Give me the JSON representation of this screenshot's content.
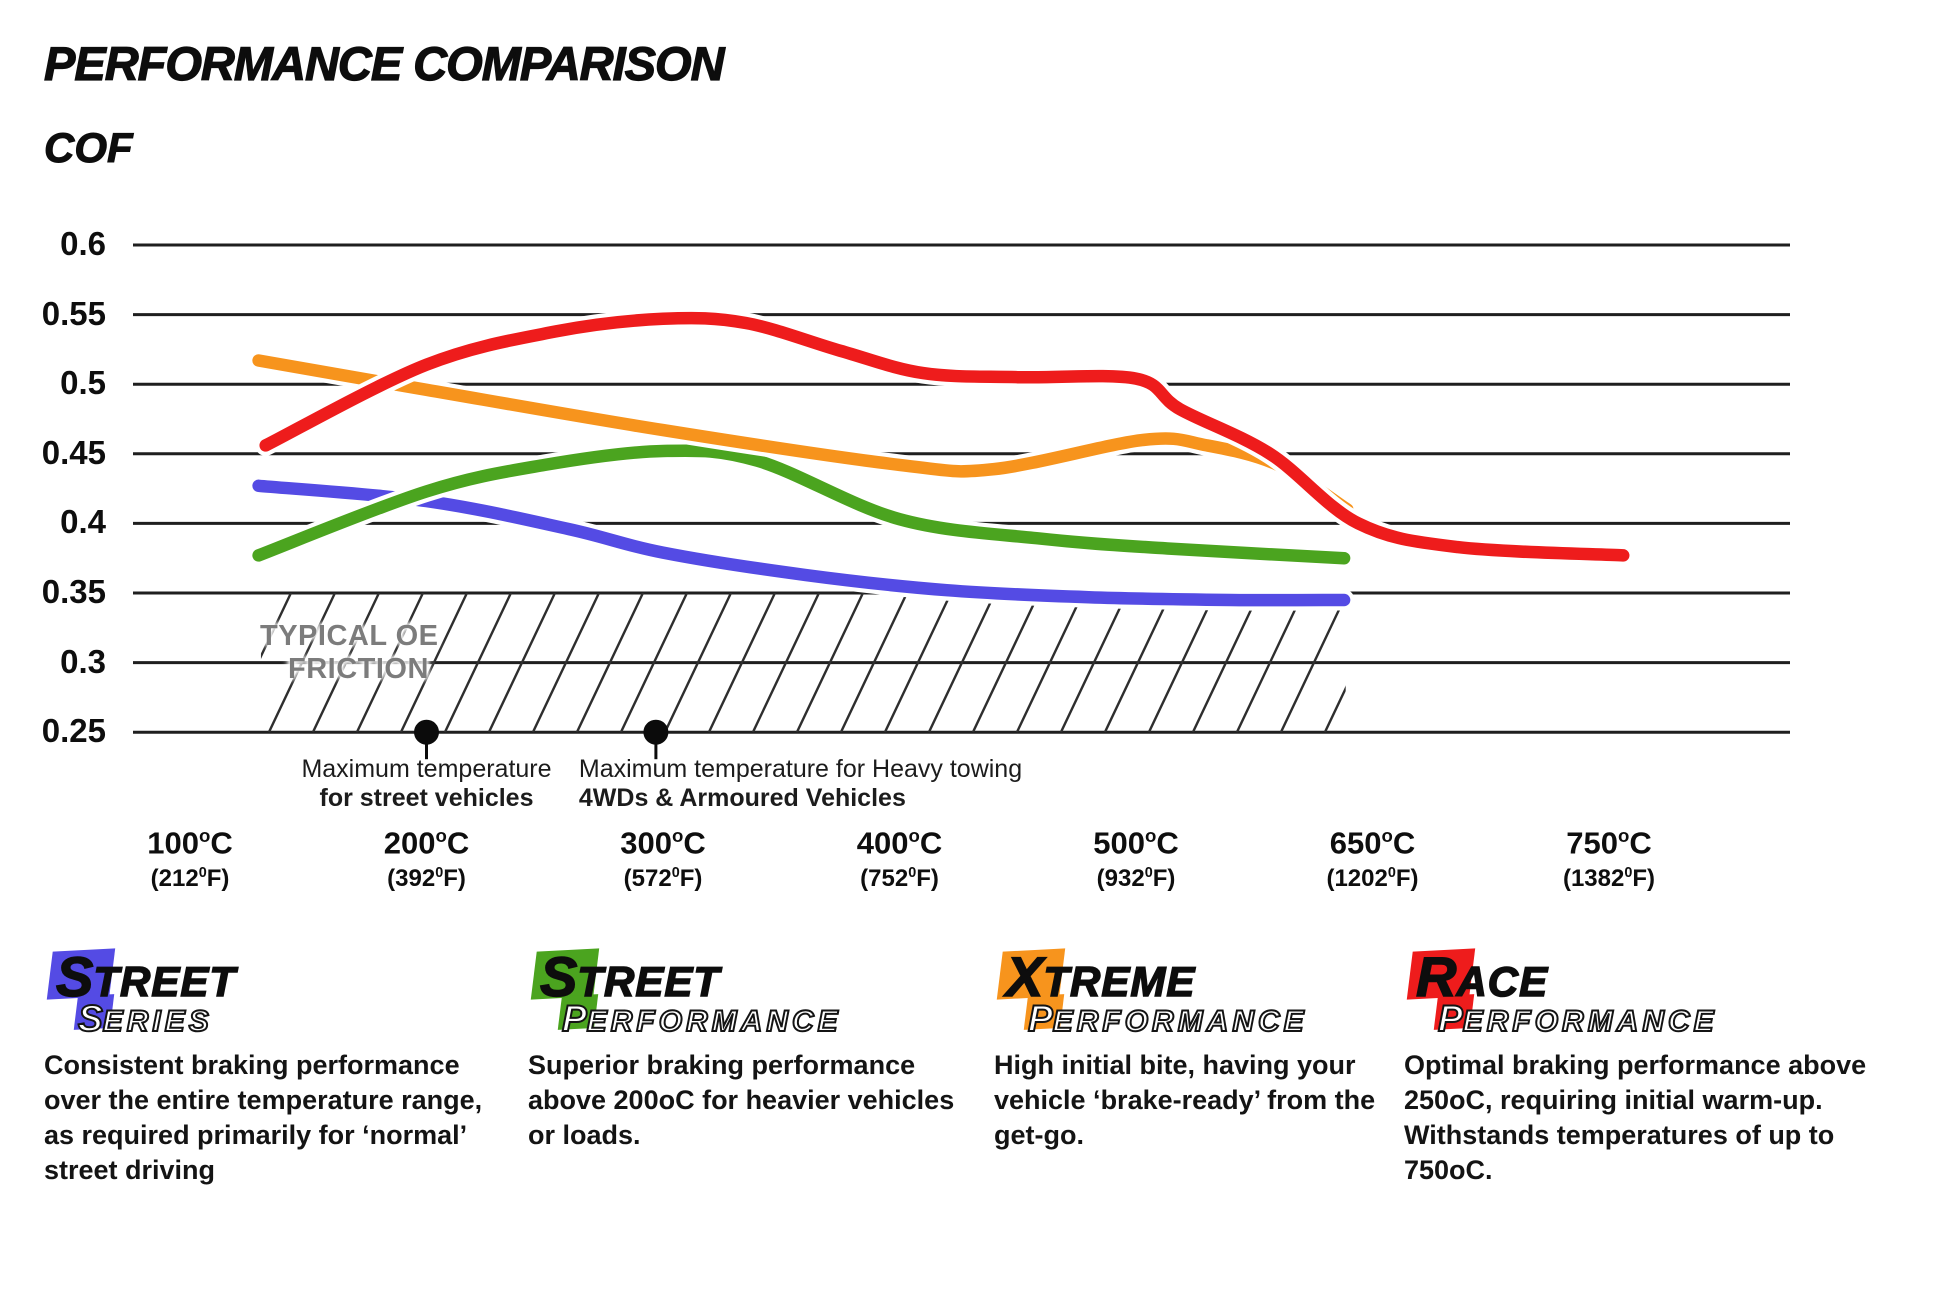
{
  "header": {
    "title": "PERFORMANCE COMPARISON",
    "ylabel": "COF"
  },
  "chart_data": {
    "type": "line",
    "title": "PERFORMANCE COMPARISON",
    "ylabel": "COF",
    "xlabel": "",
    "grid": "horizontal",
    "ylim": [
      0.25,
      0.625
    ],
    "y_ticks": [
      0.6,
      0.55,
      0.5,
      0.45,
      0.4,
      0.35,
      0.3,
      0.25
    ],
    "y_tick_labels": [
      "0.6",
      "0.55",
      "0.5",
      "0.45",
      "0.4",
      "0.35",
      "0.3",
      "0.25"
    ],
    "temps": [
      100,
      200,
      300,
      400,
      500,
      650,
      750
    ],
    "x_ticks": [
      {
        "c": "100",
        "f": "(212"
      },
      {
        "c": "200",
        "f": "(392"
      },
      {
        "c": "300",
        "f": "(572"
      },
      {
        "c": "400",
        "f": "(752"
      },
      {
        "c": "500",
        "f": "(932"
      },
      {
        "c": "650",
        "f": "(1202"
      },
      {
        "c": "750",
        "f": "(1382"
      }
    ],
    "meta": {
      "sup_c": "o",
      "c_suffix": "C",
      "sup_f": "0",
      "f_suffix": "F)"
    },
    "series": [
      {
        "name": "Street Series",
        "color": "#544be4",
        "points": [
          [
            129,
            0.427
          ],
          [
            200,
            0.416
          ],
          [
            260,
            0.396
          ],
          [
            300,
            0.379
          ],
          [
            360,
            0.363
          ],
          [
            420,
            0.352
          ],
          [
            480,
            0.347
          ],
          [
            560,
            0.345
          ],
          [
            632,
            0.345
          ]
        ]
      },
      {
        "name": "Street Performance",
        "color": "#4ba41f",
        "points": [
          [
            129,
            0.377
          ],
          [
            200,
            0.423
          ],
          [
            250,
            0.442
          ],
          [
            300,
            0.452
          ],
          [
            340,
            0.445
          ],
          [
            400,
            0.403
          ],
          [
            460,
            0.389
          ],
          [
            520,
            0.382
          ],
          [
            632,
            0.375
          ]
        ]
      },
      {
        "name": "Xtreme Performance",
        "color": "#f7941d",
        "points": [
          [
            129,
            0.517
          ],
          [
            200,
            0.496
          ],
          [
            300,
            0.467
          ],
          [
            400,
            0.442
          ],
          [
            440,
            0.439
          ],
          [
            505,
            0.46
          ],
          [
            545,
            0.456
          ],
          [
            590,
            0.442
          ],
          [
            634,
            0.41
          ]
        ]
      },
      {
        "name": "Race Performance",
        "color": "#ee1c1c",
        "points": [
          [
            132,
            0.456
          ],
          [
            200,
            0.514
          ],
          [
            255,
            0.538
          ],
          [
            300,
            0.547
          ],
          [
            335,
            0.544
          ],
          [
            375,
            0.524
          ],
          [
            410,
            0.508
          ],
          [
            450,
            0.505
          ],
          [
            500,
            0.504
          ],
          [
            528,
            0.482
          ],
          [
            585,
            0.45
          ],
          [
            641,
            0.4
          ],
          [
            686,
            0.383
          ],
          [
            756,
            0.377
          ]
        ]
      }
    ],
    "oe_band": {
      "label_line1": "TYPICAL OE",
      "label_line2": "FRICTION",
      "v_top": 0.35,
      "v_bottom": 0.25,
      "t_start": 130,
      "t_end": 633
    },
    "annotations": [
      {
        "t": 200,
        "align": "center",
        "dx": 0,
        "line1": "Maximum temperature",
        "line2": "for street vehicles"
      },
      {
        "t": 297,
        "align": "left",
        "dx": -77,
        "line1": "Maximum temperature for Heavy towing",
        "line2": "4WDs & Armoured Vehicles"
      }
    ]
  },
  "legend": {
    "items": [
      {
        "word_first": "S",
        "word_rest": "TREET",
        "sub_first": "S",
        "sub_rest": "ERIES",
        "color": "#544be4",
        "desc": "Consistent braking performance over the entire temperature range, as required primarily for ‘normal’ street driving"
      },
      {
        "word_first": "S",
        "word_rest": "TREET",
        "sub_first": "P",
        "sub_rest": "ERFORMANCE",
        "color": "#4ba41f",
        "desc": "Superior braking performance above 200oC for heavier vehicles or loads."
      },
      {
        "word_first": "X",
        "word_rest": "TREME",
        "sub_first": "P",
        "sub_rest": "ERFORMANCE",
        "color": "#f7941d",
        "desc": "High initial bite, having your vehicle ‘brake-ready’ from the get-go."
      },
      {
        "word_first": "R",
        "word_rest": "ACE",
        "sub_first": "P",
        "sub_rest": "ERFORMANCE",
        "color": "#ee1c1c",
        "desc": "Optimal braking performance above 250oC, requiring initial warm-up. Withstands temperatures of up to 750oC."
      }
    ]
  }
}
